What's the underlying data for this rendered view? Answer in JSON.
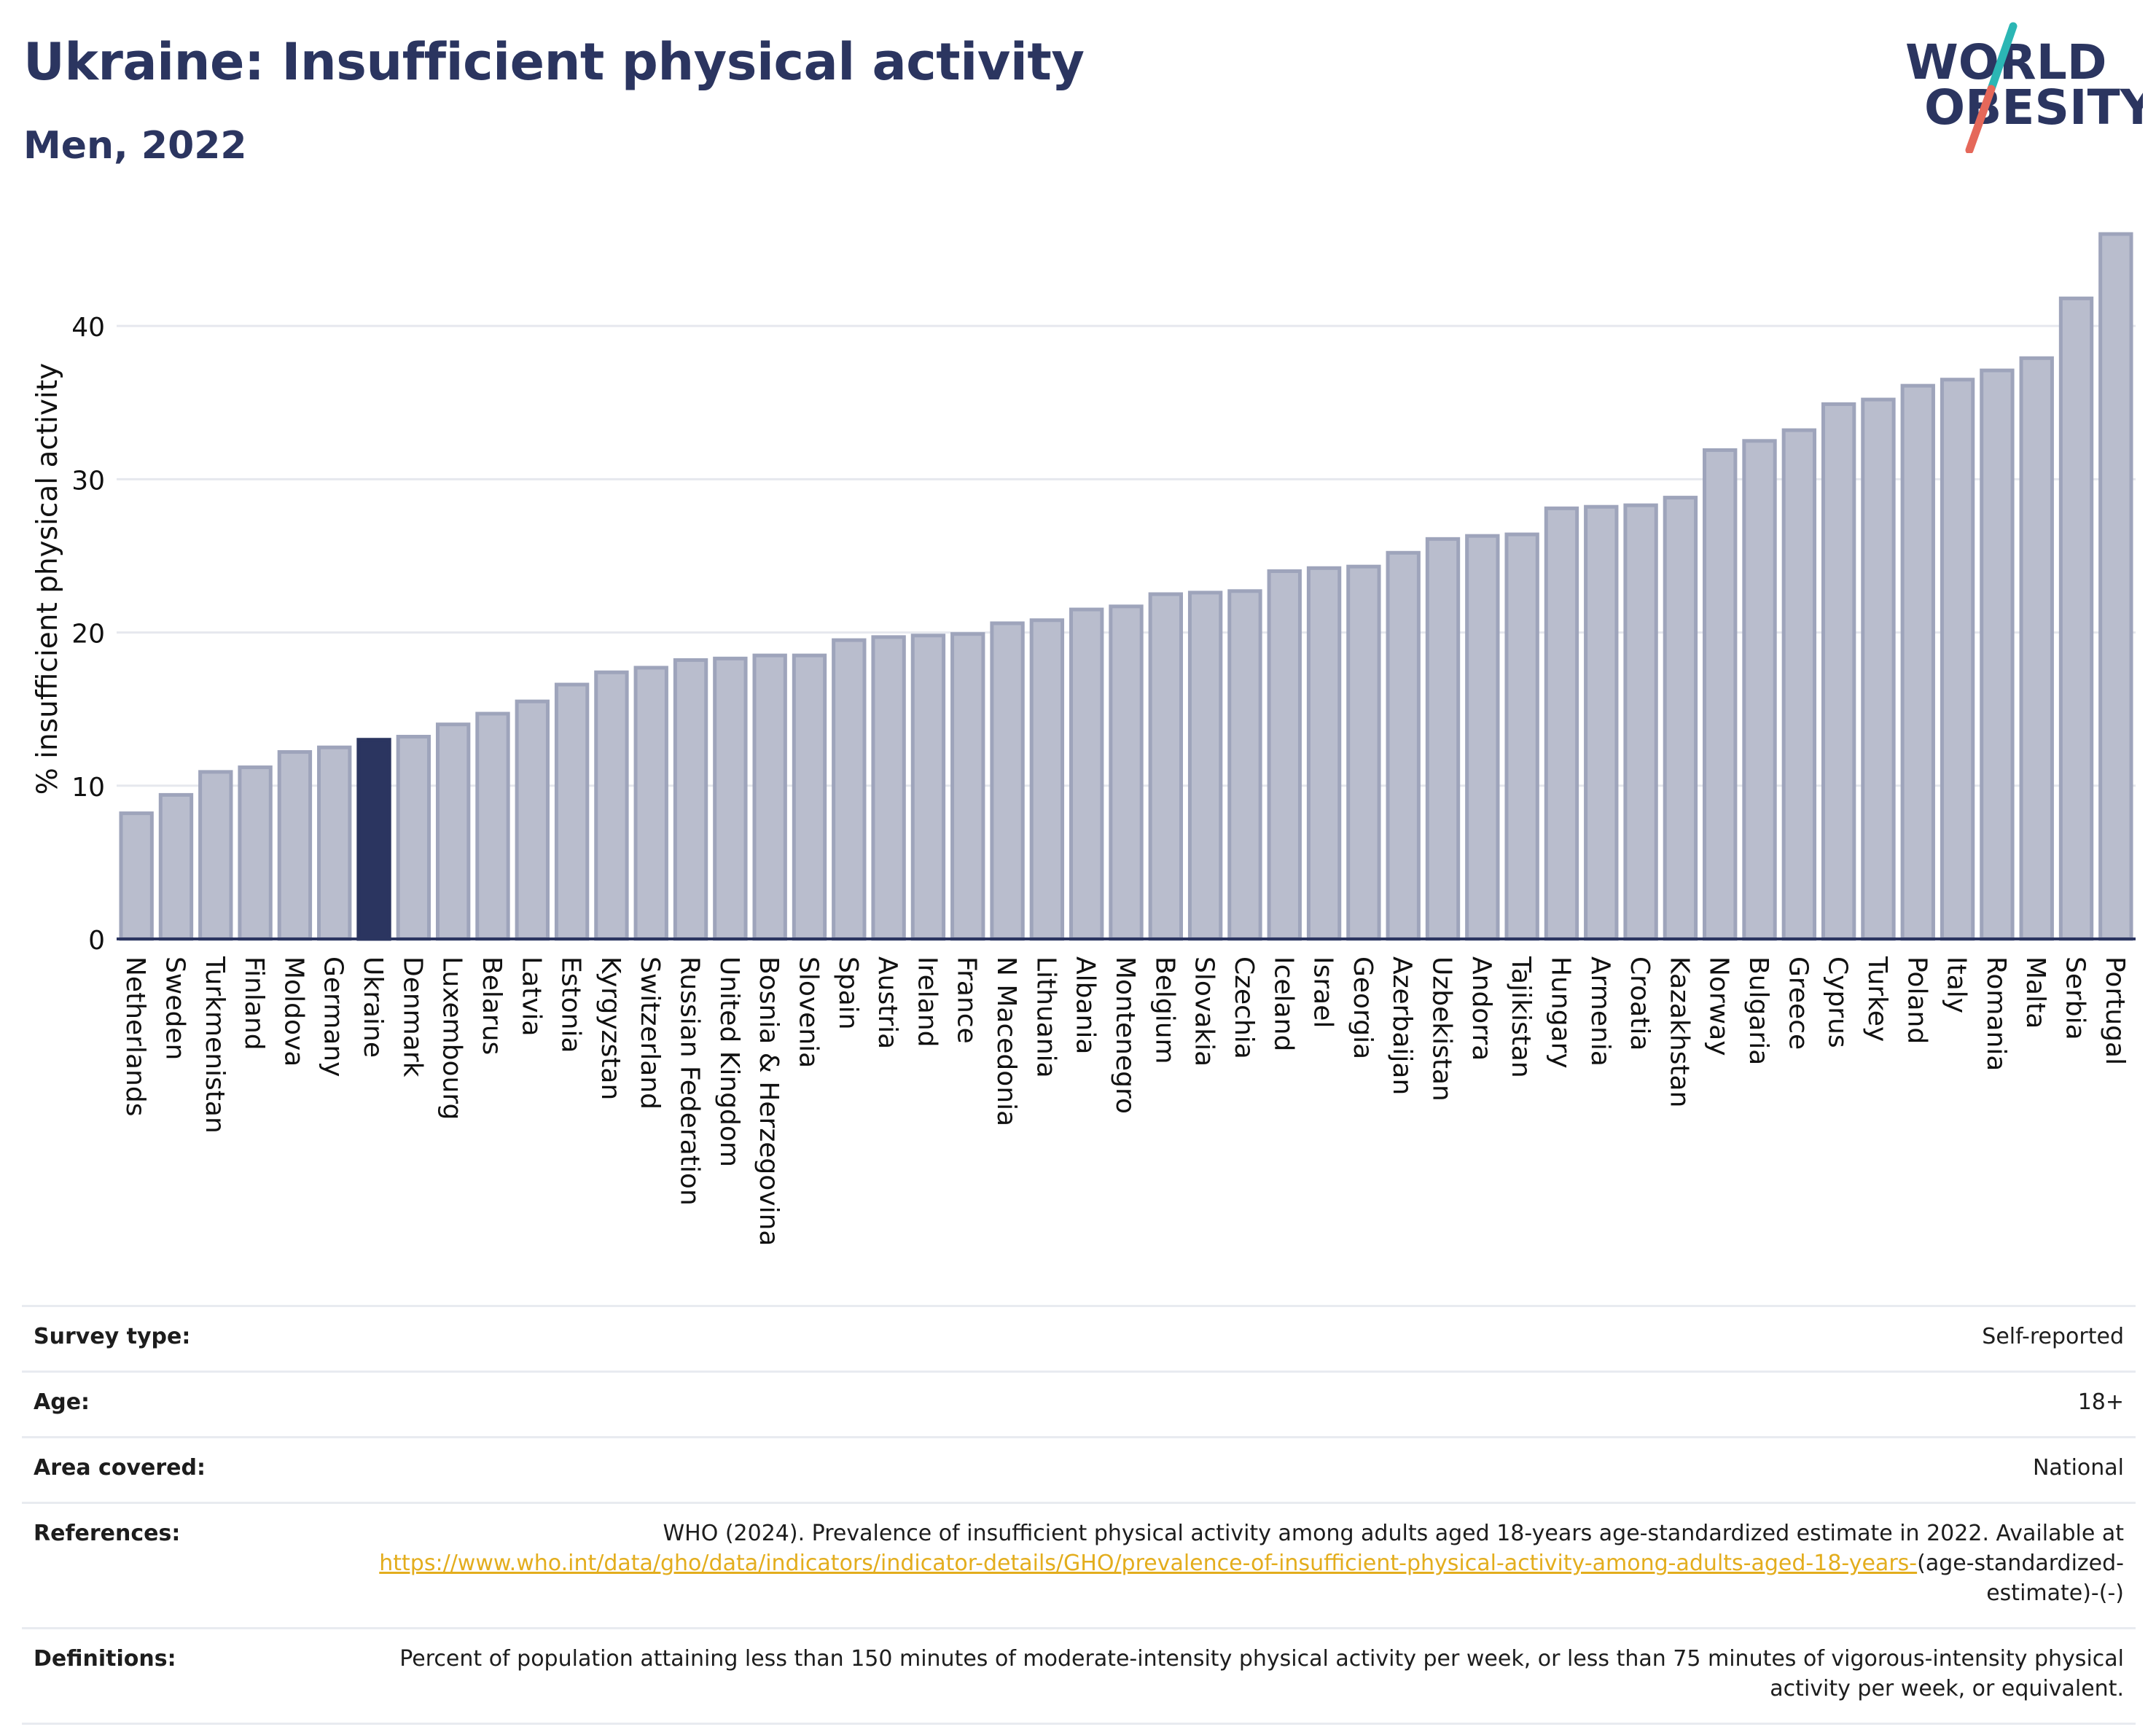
{
  "header": {
    "title": "Ukraine: Insufficient physical activity",
    "subtitle": "Men, 2022"
  },
  "logo": {
    "line1": "WORLD",
    "line2": "OBESITY"
  },
  "colors": {
    "bar_fill": "#b9bdcd",
    "bar_stroke": "#9ea4bb",
    "highlight": "#2b3560",
    "text_dark": "#2b3560",
    "link": "#e3ad1d",
    "logo_teal": "#2bb6b4",
    "logo_red": "#e5685a"
  },
  "chart_data": {
    "type": "bar",
    "title": "Ukraine: Insufficient physical activity",
    "subtitle": "Men, 2022",
    "xlabel": "",
    "ylabel": "% insufficient physical activity",
    "ylim": [
      0,
      47
    ],
    "yticks": [
      0,
      10,
      20,
      30,
      40
    ],
    "grid": true,
    "highlight": "Ukraine",
    "categories": [
      "Netherlands",
      "Sweden",
      "Turkmenistan",
      "Finland",
      "Moldova",
      "Germany",
      "Ukraine",
      "Denmark",
      "Luxembourg",
      "Belarus",
      "Latvia",
      "Estonia",
      "Kyrgyzstan",
      "Switzerland",
      "Russian Federation",
      "United Kingdom",
      "Bosnia & Herzegovina",
      "Slovenia",
      "Spain",
      "Austria",
      "Ireland",
      "France",
      "N Macedonia",
      "Lithuania",
      "Albania",
      "Montenegro",
      "Belgium",
      "Slovakia",
      "Czechia",
      "Iceland",
      "Israel",
      "Georgia",
      "Azerbaijan",
      "Uzbekistan",
      "Andorra",
      "Tajikistan",
      "Hungary",
      "Armenia",
      "Croatia",
      "Kazakhstan",
      "Norway",
      "Bulgaria",
      "Greece",
      "Cyprus",
      "Turkey",
      "Poland",
      "Italy",
      "Romania",
      "Malta",
      "Serbia",
      "Portugal"
    ],
    "values": [
      8.2,
      9.4,
      10.9,
      11.2,
      12.2,
      12.5,
      13.0,
      13.2,
      14.0,
      14.7,
      15.5,
      16.6,
      17.4,
      17.7,
      18.2,
      18.3,
      18.5,
      18.5,
      19.5,
      19.7,
      19.8,
      19.9,
      20.6,
      20.8,
      21.5,
      21.7,
      22.5,
      22.6,
      22.7,
      24.0,
      24.2,
      24.3,
      25.2,
      26.1,
      26.3,
      26.4,
      28.1,
      28.2,
      28.3,
      28.8,
      31.9,
      32.5,
      33.2,
      34.9,
      35.2,
      36.1,
      36.5,
      37.1,
      37.9,
      41.8,
      46.0
    ]
  },
  "info": {
    "survey_type": {
      "label": "Survey type:",
      "value": "Self-reported"
    },
    "age": {
      "label": "Age:",
      "value": "18+"
    },
    "area": {
      "label": "Area covered:",
      "value": "National"
    },
    "references": {
      "label": "References:",
      "text": "WHO (2024). Prevalence of insufficient physical activity among adults aged 18-years age-standardized estimate in 2022. Available at",
      "url": "https://www.who.int/data/gho/data/indicators/indicator-details/GHO/prevalence-of-insufficient-physical-activity-among-adults-aged-18-years-",
      "suffix": "(age-standardized-estimate)-(-)"
    },
    "definitions": {
      "label": "Definitions:",
      "value": "Percent of population attaining less than 150 minutes of moderate-intensity physical activity per week, or less than 75 minutes of vigorous-intensity physical activity per week, or equivalent."
    }
  }
}
